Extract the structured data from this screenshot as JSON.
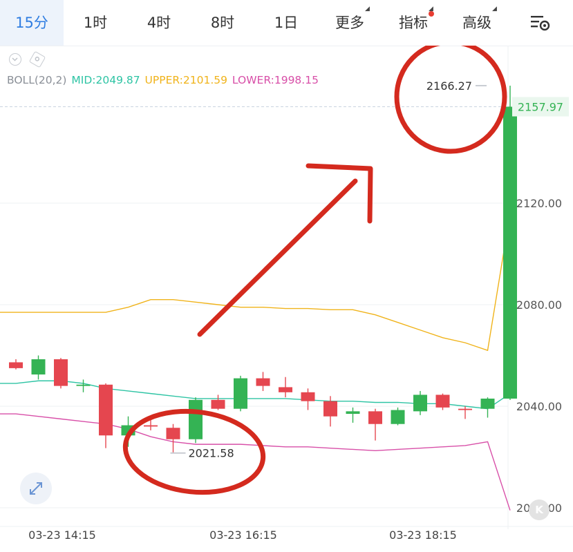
{
  "tabs": [
    {
      "label": "15分",
      "active": true
    },
    {
      "label": "1时"
    },
    {
      "label": "4时"
    },
    {
      "label": "8时"
    },
    {
      "label": "1日"
    },
    {
      "label": "更多",
      "dropdown": true
    },
    {
      "label": "指标",
      "dropdown": true,
      "badge": true
    },
    {
      "label": "高级",
      "dropdown": true
    }
  ],
  "settings_icon": "chart-settings-icon",
  "indicator": {
    "name": "BOLL(20,2)",
    "mid_label": "MID:2049.87",
    "upper_label": "UPPER:2101.59",
    "lower_label": "LOWER:1998.15",
    "colors": {
      "mid": "#2ec4a4",
      "upper": "#f0b31a",
      "lower": "#d84fa8"
    }
  },
  "colors": {
    "up": "#34b354",
    "down": "#e5464f",
    "annotation": "#d42a1e",
    "active_tab": "#2f7de1"
  },
  "logo_text": "K",
  "chart_data": {
    "type": "candlestick",
    "ylim": [
      1995,
      2185
    ],
    "y_ticks": [
      "2120.00",
      "2080.00",
      "2040.00",
      "2000.00"
    ],
    "x_ticks": [
      "03-23 14:15",
      "03-23 16:15",
      "03-23 18:15"
    ],
    "last_price": "2157.97",
    "high_label": "2166.27",
    "low_label": "2021.58",
    "candles": [
      {
        "o": 2057.3,
        "h": 2058.5,
        "l": 2054.5,
        "c": 2055.0
      },
      {
        "o": 2052.5,
        "h": 2060.0,
        "l": 2050.5,
        "c": 2058.5
      },
      {
        "o": 2058.5,
        "h": 2059.0,
        "l": 2047.0,
        "c": 2048.0
      },
      {
        "o": 2048.0,
        "h": 2050.5,
        "l": 2045.5,
        "c": 2048.5
      },
      {
        "o": 2048.5,
        "h": 2049.0,
        "l": 2023.5,
        "c": 2028.5
      },
      {
        "o": 2028.5,
        "h": 2036.0,
        "l": 2024.0,
        "c": 2032.5
      },
      {
        "o": 2032.5,
        "h": 2035.0,
        "l": 2030.5,
        "c": 2032.0
      },
      {
        "o": 2031.5,
        "h": 2033.0,
        "l": 2021.58,
        "c": 2027.0
      },
      {
        "o": 2027.0,
        "h": 2043.5,
        "l": 2025.5,
        "c": 2042.5
      },
      {
        "o": 2042.5,
        "h": 2044.5,
        "l": 2038.5,
        "c": 2039.0
      },
      {
        "o": 2039.0,
        "h": 2052.0,
        "l": 2038.0,
        "c": 2051.0
      },
      {
        "o": 2051.0,
        "h": 2053.5,
        "l": 2046.0,
        "c": 2048.0
      },
      {
        "o": 2047.5,
        "h": 2051.5,
        "l": 2043.5,
        "c": 2045.5
      },
      {
        "o": 2045.5,
        "h": 2047.0,
        "l": 2038.5,
        "c": 2042.0
      },
      {
        "o": 2042.0,
        "h": 2044.0,
        "l": 2032.0,
        "c": 2036.0
      },
      {
        "o": 2037.0,
        "h": 2039.5,
        "l": 2033.5,
        "c": 2038.0
      },
      {
        "o": 2038.0,
        "h": 2039.0,
        "l": 2026.5,
        "c": 2033.0
      },
      {
        "o": 2033.0,
        "h": 2039.5,
        "l": 2032.5,
        "c": 2038.5
      },
      {
        "o": 2038.0,
        "h": 2046.0,
        "l": 2036.5,
        "c": 2044.5
      },
      {
        "o": 2044.5,
        "h": 2045.0,
        "l": 2038.5,
        "c": 2039.5
      },
      {
        "o": 2039.0,
        "h": 2040.0,
        "l": 2035.0,
        "c": 2038.5
      },
      {
        "o": 2039.0,
        "h": 2043.5,
        "l": 2035.5,
        "c": 2043.0
      },
      {
        "o": 2043.0,
        "h": 2166.27,
        "l": 2042.5,
        "c": 2157.97
      }
    ],
    "boll_upper": [
      2077.0,
      2077.0,
      2077.0,
      2077.0,
      2077.0,
      2079.0,
      2082.0,
      2082.0,
      2081.0,
      2080.0,
      2079.0,
      2079.0,
      2078.5,
      2078.5,
      2078.0,
      2078.0,
      2076.0,
      2073.0,
      2070.0,
      2067.0,
      2065.0,
      2062.0,
      2116.0
    ],
    "boll_mid": [
      2049.0,
      2050.0,
      2050.0,
      2049.0,
      2047.0,
      2046.0,
      2045.0,
      2044.0,
      2043.0,
      2043.0,
      2043.0,
      2043.0,
      2043.0,
      2042.5,
      2042.0,
      2042.0,
      2041.5,
      2041.5,
      2041.0,
      2041.0,
      2040.0,
      2039.0,
      2045.0
    ],
    "boll_lower": [
      2037.0,
      2036.0,
      2035.0,
      2034.0,
      2033.0,
      2031.0,
      2028.0,
      2026.0,
      2025.0,
      2025.0,
      2025.0,
      2024.5,
      2024.0,
      2024.0,
      2023.5,
      2023.0,
      2022.5,
      2023.0,
      2023.5,
      2024.0,
      2024.5,
      2026.0,
      1999.0
    ]
  }
}
